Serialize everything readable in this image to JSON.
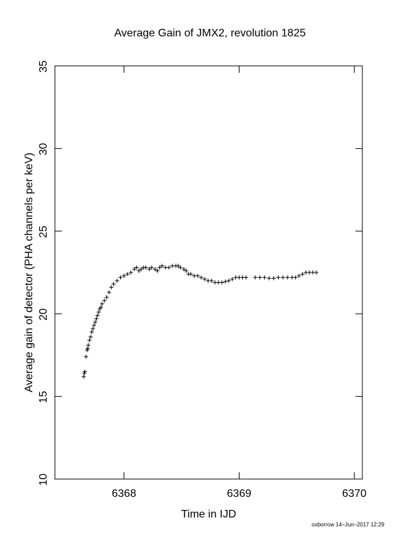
{
  "chart_data": {
    "type": "scatter",
    "title": "Average Gain of JMX2, revolution 1825",
    "x_label": "Time in IJD",
    "y_label": "Average gain of detector (PHA channels per keV)",
    "footer": "oxborrow 14–Jun–2017 12:29",
    "xlim": [
      6367.4,
      6370.07
    ],
    "ylim": [
      10,
      35
    ],
    "xticks": [
      6368,
      6369,
      6370
    ],
    "yticks": [
      10,
      15,
      20,
      25,
      30,
      35
    ],
    "marker": "plus",
    "color": "#000000",
    "x": [
      6367.65,
      6367.655,
      6367.66,
      6367.67,
      6367.68,
      6367.685,
      6367.69,
      6367.7,
      6367.71,
      6367.72,
      6367.73,
      6367.74,
      6367.75,
      6367.76,
      6367.77,
      6367.78,
      6367.79,
      6367.8,
      6367.81,
      6367.83,
      6367.85,
      6367.87,
      6367.89,
      6367.91,
      6367.94,
      6367.97,
      6368.0,
      6368.03,
      6368.06,
      6368.09,
      6368.11,
      6368.13,
      6368.15,
      6368.17,
      6368.19,
      6368.22,
      6368.24,
      6368.27,
      6368.29,
      6368.31,
      6368.33,
      6368.36,
      6368.39,
      6368.42,
      6368.45,
      6368.47,
      6368.49,
      6368.52,
      6368.54,
      6368.56,
      6368.58,
      6368.61,
      6368.64,
      6368.67,
      6368.7,
      6368.73,
      6368.76,
      6368.79,
      6368.82,
      6368.85,
      6368.88,
      6368.91,
      6368.94,
      6368.97,
      6369.0,
      6369.03,
      6369.06,
      6369.14,
      6369.18,
      6369.22,
      6369.26,
      6369.3,
      6369.34,
      6369.38,
      6369.42,
      6369.46,
      6369.49,
      6369.52,
      6369.55,
      6369.58,
      6369.61,
      6369.64,
      6369.67
    ],
    "y": [
      16.2,
      16.4,
      16.5,
      17.4,
      17.8,
      17.9,
      18.1,
      18.4,
      18.6,
      18.9,
      19.1,
      19.3,
      19.5,
      19.7,
      19.9,
      20.1,
      20.3,
      20.4,
      20.6,
      20.8,
      21.0,
      21.3,
      21.6,
      21.8,
      22.0,
      22.2,
      22.3,
      22.4,
      22.5,
      22.7,
      22.8,
      22.6,
      22.7,
      22.8,
      22.8,
      22.7,
      22.8,
      22.7,
      22.6,
      22.8,
      22.9,
      22.8,
      22.8,
      22.9,
      22.9,
      22.9,
      22.8,
      22.7,
      22.6,
      22.4,
      22.4,
      22.3,
      22.3,
      22.2,
      22.1,
      22.0,
      22.0,
      21.9,
      21.9,
      21.9,
      21.95,
      22.0,
      22.1,
      22.2,
      22.2,
      22.2,
      22.2,
      22.2,
      22.2,
      22.2,
      22.15,
      22.15,
      22.2,
      22.2,
      22.2,
      22.2,
      22.2,
      22.3,
      22.4,
      22.5,
      22.5,
      22.5,
      22.5
    ]
  }
}
